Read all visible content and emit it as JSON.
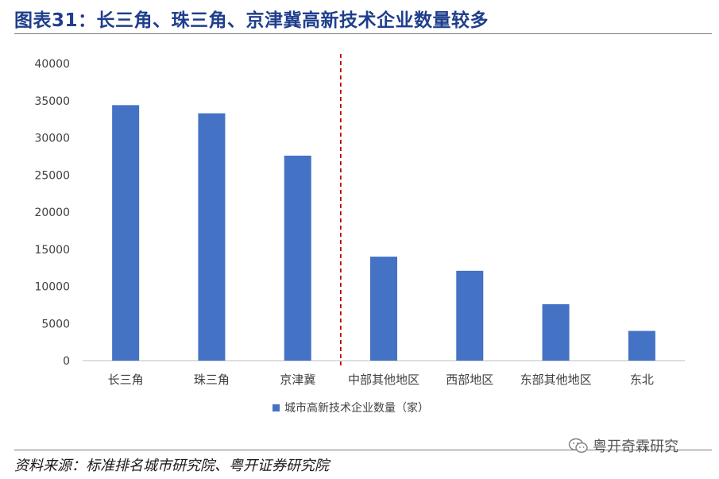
{
  "title": "图表31：长三角、珠三角、京津冀高新技术企业数量较多",
  "source": "资料来源：标准排名城市研究院、粤开证券研究院",
  "watermark": {
    "text": "粤开奇霖研究",
    "icon": "wechat-icon"
  },
  "chart_data": {
    "type": "bar",
    "categories": [
      "长三角",
      "珠三角",
      "京津冀",
      "中部其他地区",
      "西部地区",
      "东部其他地区",
      "东北"
    ],
    "series": [
      {
        "name": "城市高新技术企业数量（家）",
        "values": [
          34400,
          33300,
          27600,
          14000,
          12100,
          7600,
          4000
        ],
        "color": "#4472c4"
      }
    ],
    "yticks": [
      "0",
      "5000",
      "10000",
      "15000",
      "20000",
      "25000",
      "30000",
      "35000",
      "40000"
    ],
    "ylim": [
      0,
      40000
    ],
    "grid": false,
    "legend": "bottom-center",
    "divider": {
      "after_category_index": 2,
      "style": "dashed",
      "color": "#c00000"
    }
  }
}
